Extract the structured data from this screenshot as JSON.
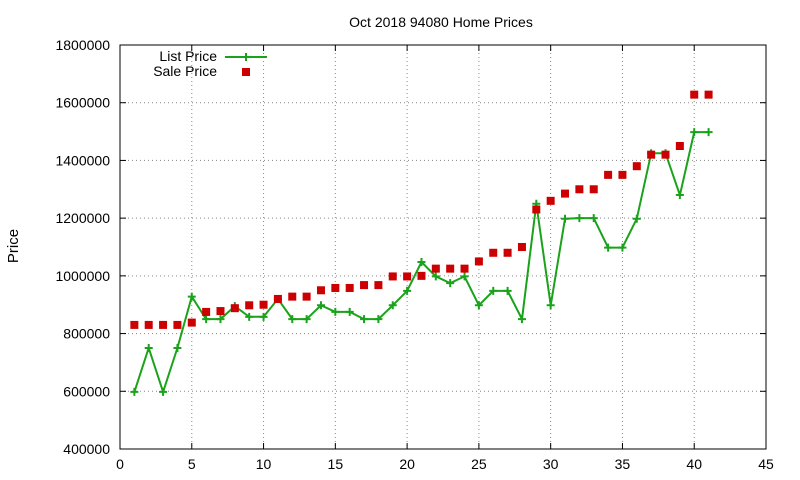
{
  "chart_data": {
    "type": "line",
    "title": "Oct 2018 94080 Home Prices",
    "xlabel": "",
    "ylabel": "Price",
    "xlim": [
      0,
      45
    ],
    "ylim": [
      400000,
      1800000
    ],
    "xticks": [
      0,
      5,
      10,
      15,
      20,
      25,
      30,
      35,
      40,
      45
    ],
    "yticks": [
      400000,
      600000,
      800000,
      1000000,
      1200000,
      1400000,
      1600000,
      1800000
    ],
    "grid": true,
    "legend_position": "top-left",
    "series": [
      {
        "name": "List Price",
        "style": "line-with-plus-markers",
        "color": "#1aa31a",
        "x": [
          1,
          2,
          3,
          4,
          5,
          6,
          7,
          8,
          9,
          10,
          11,
          12,
          13,
          14,
          15,
          16,
          17,
          18,
          19,
          20,
          21,
          22,
          23,
          24,
          25,
          26,
          27,
          28,
          29,
          30,
          31,
          32,
          33,
          34,
          35,
          36,
          37,
          38,
          39,
          40,
          41
        ],
        "values": [
          598000,
          750000,
          598000,
          750000,
          928000,
          850000,
          850000,
          895000,
          858000,
          858000,
          920000,
          850000,
          850000,
          898000,
          875000,
          875000,
          850000,
          850000,
          898000,
          948000,
          1048000,
          998000,
          975000,
          998000,
          898000,
          948000,
          948000,
          850000,
          1250000,
          898000,
          1198000,
          1200000,
          1200000,
          1098000,
          1098000,
          1198000,
          1425000,
          1425000,
          1280000,
          1498000,
          1498000
        ]
      },
      {
        "name": "Sale Price",
        "style": "square-markers",
        "color": "#cc0000",
        "x": [
          1,
          2,
          3,
          4,
          5,
          6,
          7,
          8,
          9,
          10,
          11,
          12,
          13,
          14,
          15,
          16,
          17,
          18,
          19,
          20,
          21,
          22,
          23,
          24,
          25,
          26,
          27,
          28,
          29,
          30,
          31,
          32,
          33,
          34,
          35,
          36,
          37,
          38,
          39,
          40,
          41
        ],
        "values": [
          830000,
          830000,
          830000,
          830000,
          838000,
          875000,
          878000,
          888000,
          898000,
          900000,
          920000,
          928000,
          928000,
          950000,
          958000,
          958000,
          968000,
          968000,
          998000,
          998000,
          1000000,
          1025000,
          1025000,
          1025000,
          1050000,
          1080000,
          1080000,
          1100000,
          1230000,
          1260000,
          1285000,
          1300000,
          1300000,
          1350000,
          1350000,
          1380000,
          1420000,
          1420000,
          1450000,
          1628000,
          1628000
        ]
      }
    ]
  }
}
